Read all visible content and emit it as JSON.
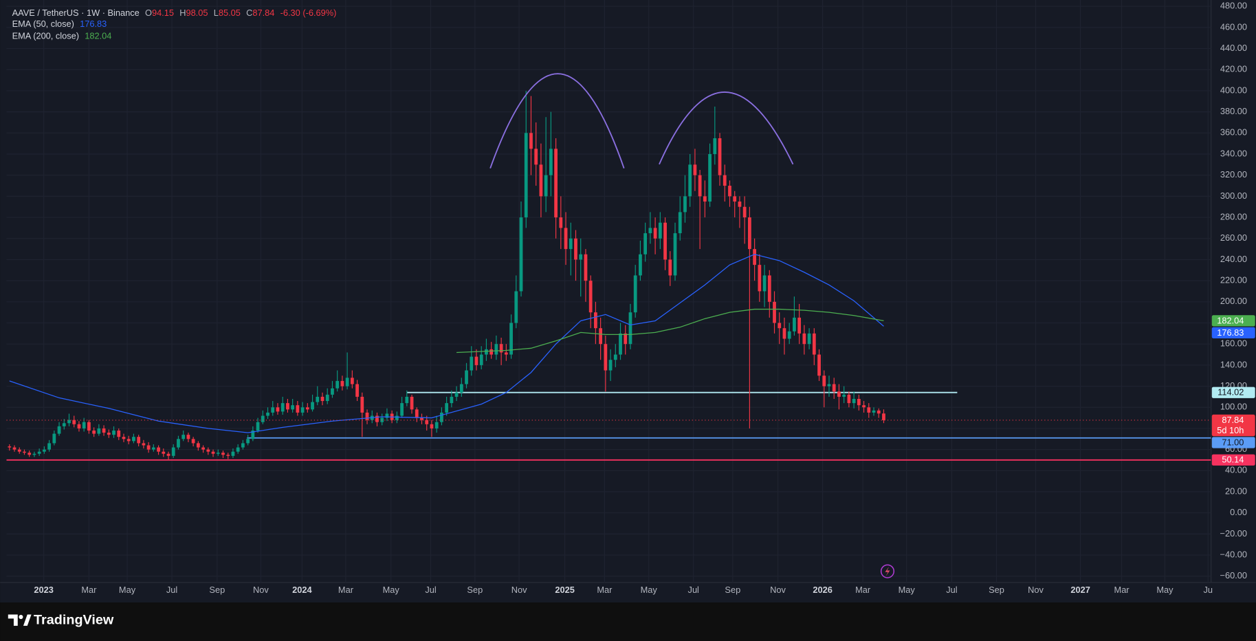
{
  "chart_data": {
    "type": "candlestick",
    "title": "AAVE / TetherUS · 1W · Binance",
    "ohlc_labels": [
      "O",
      "H",
      "L",
      "C"
    ],
    "change": "-6.30 (-6.69%)",
    "countdown": "5d 10h",
    "up_color": "#089981",
    "down_color": "#f23645",
    "open": [
      63,
      62,
      60,
      58,
      57,
      55,
      56,
      58,
      60,
      66,
      75,
      82,
      85,
      88,
      84,
      80,
      86,
      78,
      75,
      80,
      76,
      74,
      78,
      72,
      70,
      68,
      72,
      66,
      64,
      60,
      62,
      58,
      56,
      54,
      62,
      70,
      74,
      70,
      66,
      62,
      60,
      58,
      56,
      57,
      55,
      54,
      58,
      62,
      66,
      70,
      78,
      86,
      92,
      95,
      100,
      96,
      104,
      98,
      102,
      95,
      100,
      98,
      105,
      110,
      106,
      112,
      118,
      125,
      120,
      128,
      122,
      110,
      95,
      88,
      92,
      86,
      90,
      94,
      88,
      92,
      104,
      110,
      98,
      90,
      88,
      84,
      80,
      86,
      95,
      104,
      110,
      114,
      122,
      135,
      148,
      140,
      150,
      155,
      150,
      160,
      152,
      150,
      180,
      210,
      280,
      360,
      345,
      330,
      300,
      320,
      345,
      280,
      270,
      250,
      260,
      240,
      245,
      220,
      190,
      175,
      160,
      135,
      145,
      150,
      170,
      160,
      190,
      225,
      245,
      265,
      270,
      260,
      275,
      240,
      225,
      265,
      285,
      300,
      330,
      320,
      300,
      295,
      340,
      355,
      320,
      310,
      300,
      295,
      290,
      280,
      250,
      235,
      210,
      225,
      200,
      180,
      175,
      165,
      172,
      185,
      170,
      160,
      170,
      150,
      130,
      120,
      122,
      115,
      110,
      112,
      104,
      108,
      102,
      100,
      95,
      97,
      94.15
    ],
    "high": [
      65,
      64,
      62,
      60,
      59,
      58,
      61,
      63,
      69,
      78,
      86,
      89,
      94,
      92,
      87,
      90,
      88,
      81,
      84,
      83,
      79,
      82,
      80,
      75,
      73,
      75,
      74,
      69,
      67,
      65,
      64,
      61,
      58,
      65,
      73,
      78,
      76,
      72,
      68,
      64,
      62,
      60,
      60,
      59,
      57,
      61,
      65,
      69,
      74,
      82,
      90,
      97,
      100,
      106,
      104,
      110,
      108,
      108,
      106,
      105,
      104,
      112,
      120,
      114,
      118,
      125,
      135,
      130,
      152,
      135,
      126,
      114,
      98,
      97,
      95,
      94,
      99,
      97,
      96,
      110,
      116,
      112,
      100,
      94,
      92,
      88,
      92,
      100,
      110,
      116,
      120,
      128,
      142,
      158,
      155,
      158,
      165,
      162,
      168,
      166,
      160,
      188,
      225,
      295,
      400,
      395,
      370,
      350,
      375,
      380,
      355,
      300,
      285,
      275,
      268,
      260,
      250,
      225,
      200,
      185,
      168,
      155,
      160,
      180,
      178,
      198,
      235,
      258,
      275,
      285,
      280,
      285,
      280,
      248,
      275,
      300,
      320,
      340,
      345,
      325,
      315,
      350,
      385,
      360,
      330,
      315,
      305,
      300,
      300,
      290,
      260,
      245,
      235,
      230,
      210,
      190,
      185,
      180,
      205,
      198,
      178,
      175,
      175,
      155,
      135,
      130,
      128,
      122,
      120,
      115,
      115,
      112,
      106,
      104,
      100,
      99,
      98.05
    ],
    "low": [
      59,
      58,
      56,
      55,
      53,
      53,
      54,
      56,
      58,
      64,
      73,
      79,
      82,
      81,
      77,
      77,
      75,
      72,
      73,
      73,
      71,
      71,
      69,
      67,
      65,
      66,
      63,
      61,
      57,
      58,
      55,
      53,
      50,
      52,
      60,
      68,
      67,
      63,
      59,
      57,
      55,
      53,
      54,
      52,
      51,
      52,
      56,
      60,
      64,
      68,
      76,
      84,
      89,
      92,
      93,
      93,
      95,
      95,
      92,
      92,
      95,
      96,
      102,
      102,
      103,
      109,
      115,
      116,
      117,
      118,
      106,
      72,
      84,
      85,
      82,
      83,
      87,
      85,
      85,
      90,
      101,
      94,
      86,
      84,
      78,
      72,
      76,
      83,
      92,
      100,
      106,
      110,
      118,
      130,
      135,
      136,
      144,
      146,
      145,
      140,
      144,
      146,
      175,
      205,
      270,
      320,
      310,
      280,
      285,
      300,
      260,
      250,
      235,
      225,
      220,
      205,
      200,
      175,
      160,
      145,
      115,
      125,
      138,
      145,
      150,
      155,
      185,
      220,
      238,
      255,
      245,
      250,
      230,
      215,
      220,
      258,
      275,
      290,
      305,
      250,
      280,
      290,
      330,
      310,
      295,
      290,
      280,
      270,
      255,
      80,
      220,
      200,
      195,
      185,
      170,
      160,
      150,
      160,
      168,
      160,
      150,
      155,
      140,
      125,
      100,
      110,
      108,
      98,
      104,
      100,
      99,
      97,
      95,
      90,
      92,
      90,
      85.05
    ],
    "close": [
      62,
      60,
      58,
      57,
      55,
      56,
      58,
      60,
      66,
      75,
      82,
      85,
      88,
      84,
      80,
      86,
      78,
      75,
      80,
      76,
      74,
      78,
      72,
      70,
      68,
      72,
      66,
      64,
      60,
      62,
      58,
      56,
      54,
      62,
      70,
      74,
      70,
      66,
      62,
      60,
      58,
      56,
      57,
      55,
      54,
      58,
      62,
      66,
      70,
      78,
      86,
      92,
      95,
      100,
      96,
      104,
      98,
      102,
      95,
      100,
      98,
      105,
      110,
      106,
      112,
      118,
      125,
      120,
      128,
      122,
      110,
      95,
      88,
      92,
      86,
      90,
      94,
      88,
      92,
      104,
      110,
      98,
      90,
      88,
      84,
      80,
      86,
      95,
      104,
      110,
      114,
      122,
      135,
      148,
      140,
      150,
      155,
      150,
      160,
      152,
      150,
      180,
      210,
      280,
      360,
      345,
      330,
      300,
      320,
      345,
      280,
      270,
      250,
      260,
      240,
      245,
      220,
      190,
      175,
      160,
      135,
      145,
      150,
      170,
      160,
      190,
      225,
      245,
      265,
      270,
      260,
      275,
      240,
      225,
      265,
      285,
      300,
      330,
      320,
      300,
      295,
      340,
      355,
      320,
      310,
      300,
      295,
      290,
      280,
      250,
      235,
      210,
      225,
      200,
      180,
      175,
      165,
      172,
      185,
      170,
      160,
      170,
      150,
      130,
      120,
      122,
      115,
      110,
      112,
      104,
      108,
      102,
      100,
      95,
      97,
      94.15,
      87.84
    ],
    "series": [
      {
        "name": "EMA (50, close)",
        "color": "#2962ff",
        "x": [
          0,
          10,
          20,
          30,
          40,
          48,
          55,
          65,
          75,
          85,
          95,
          100,
          105,
          110,
          115,
          120,
          125,
          130,
          135,
          140,
          145,
          150,
          155,
          160,
          165,
          170,
          176
        ],
        "values": [
          125,
          109,
          99,
          87,
          80,
          76,
          81,
          87,
          91,
          90,
          103,
          114,
          133,
          160,
          182,
          188,
          178,
          182,
          199,
          216,
          235,
          245,
          239,
          228,
          216,
          201,
          176.83
        ]
      },
      {
        "name": "EMA (200, close)",
        "color": "#4caf50",
        "x": [
          90,
          100,
          105,
          110,
          115,
          120,
          125,
          130,
          135,
          140,
          145,
          150,
          155,
          160,
          165,
          170,
          176
        ],
        "values": [
          152,
          154,
          156,
          163,
          171,
          169,
          169,
          171,
          176,
          184,
          190,
          193,
          193,
          192,
          190,
          187,
          182.04
        ]
      }
    ],
    "levels": [
      {
        "value": 114.02,
        "color": "#b2ebf2"
      },
      {
        "value": 71,
        "label": "71.00",
        "color": "#5b9cf6"
      },
      {
        "value": 50.14,
        "color": "#f7325f"
      }
    ],
    "xlim": [
      -0.6,
      241.9
    ],
    "xticks": [
      {
        "value": 6.9,
        "label": "2023"
      },
      {
        "value": 16,
        "label": "Mar"
      },
      {
        "value": 23.7,
        "label": "May"
      },
      {
        "value": 32.7,
        "label": "Jul"
      },
      {
        "value": 41.8,
        "label": "Sep"
      },
      {
        "value": 50.6,
        "label": "Nov"
      },
      {
        "value": 58.9,
        "label": "2024"
      },
      {
        "value": 67.7,
        "label": "Mar"
      },
      {
        "value": 76.8,
        "label": "May"
      },
      {
        "value": 84.8,
        "label": "Jul"
      },
      {
        "value": 93.7,
        "label": "Sep"
      },
      {
        "value": 102.6,
        "label": "Nov"
      },
      {
        "value": 111.8,
        "label": "2025"
      },
      {
        "value": 119.8,
        "label": "Mar"
      },
      {
        "value": 128.7,
        "label": "May"
      },
      {
        "value": 137.7,
        "label": "Jul"
      },
      {
        "value": 145.6,
        "label": "Sep"
      },
      {
        "value": 154.7,
        "label": "Nov"
      },
      {
        "value": 163.7,
        "label": "2026"
      },
      {
        "value": 171.8,
        "label": "Mar"
      },
      {
        "value": 180.6,
        "label": "May"
      },
      {
        "value": 189.7,
        "label": "Jul"
      },
      {
        "value": 198.7,
        "label": "Sep"
      },
      {
        "value": 206.6,
        "label": "Nov"
      },
      {
        "value": 215.6,
        "label": "2027"
      },
      {
        "value": 223.9,
        "label": "Mar"
      },
      {
        "value": 232.6,
        "label": "May"
      },
      {
        "value": 241.3,
        "label": "Ju"
      }
    ],
    "ylim": [
      -66,
      486
    ],
    "yticks": [
      {
        "value": 480,
        "label": "480.00"
      },
      {
        "value": 460,
        "label": "460.00"
      },
      {
        "value": 440,
        "label": "440.00"
      },
      {
        "value": 420,
        "label": "420.00"
      },
      {
        "value": 400,
        "label": "400.00"
      },
      {
        "value": 380,
        "label": "380.00"
      },
      {
        "value": 360,
        "label": "360.00"
      },
      {
        "value": 340,
        "label": "340.00"
      },
      {
        "value": 320,
        "label": "320.00"
      },
      {
        "value": 300,
        "label": "300.00"
      },
      {
        "value": 280,
        "label": "280.00"
      },
      {
        "value": 260,
        "label": "260.00"
      },
      {
        "value": 240,
        "label": "240.00"
      },
      {
        "value": 220,
        "label": "220.00"
      },
      {
        "value": 200,
        "label": "200.00"
      },
      {
        "value": 180,
        "label": "180.00"
      },
      {
        "value": 160,
        "label": "160.00"
      },
      {
        "value": 140,
        "label": "140.00"
      },
      {
        "value": 120,
        "label": "120.00"
      },
      {
        "value": 100,
        "label": "100.00"
      },
      {
        "value": 80,
        "label": "80.00"
      },
      {
        "value": 60,
        "label": "60.00"
      },
      {
        "value": 40,
        "label": "40.00"
      },
      {
        "value": 20,
        "label": "20.00"
      },
      {
        "value": 0,
        "label": "0.00"
      },
      {
        "value": -20,
        "label": "−20.00"
      },
      {
        "value": -40,
        "label": "−40.00"
      },
      {
        "value": -60,
        "label": "−60.00"
      }
    ],
    "grid": true
  },
  "brand": "TradingView"
}
